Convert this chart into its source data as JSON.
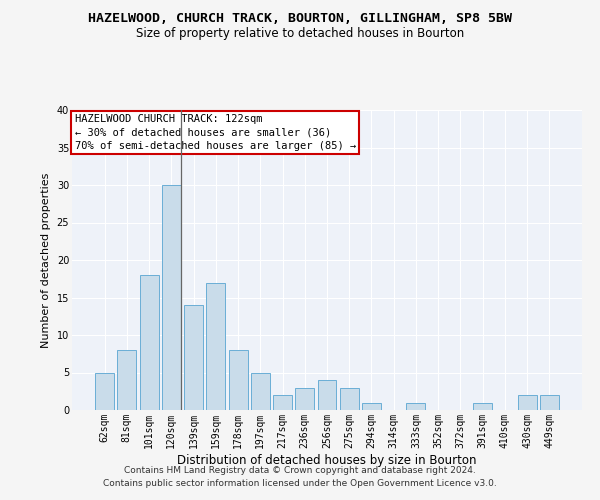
{
  "title": "HAZELWOOD, CHURCH TRACK, BOURTON, GILLINGHAM, SP8 5BW",
  "subtitle": "Size of property relative to detached houses in Bourton",
  "xlabel": "Distribution of detached houses by size in Bourton",
  "ylabel": "Number of detached properties",
  "categories": [
    "62sqm",
    "81sqm",
    "101sqm",
    "120sqm",
    "139sqm",
    "159sqm",
    "178sqm",
    "197sqm",
    "217sqm",
    "236sqm",
    "256sqm",
    "275sqm",
    "294sqm",
    "314sqm",
    "333sqm",
    "352sqm",
    "372sqm",
    "391sqm",
    "410sqm",
    "430sqm",
    "449sqm"
  ],
  "values": [
    5,
    8,
    18,
    30,
    14,
    17,
    8,
    5,
    2,
    3,
    4,
    3,
    1,
    0,
    1,
    0,
    0,
    1,
    0,
    2,
    2
  ],
  "bar_color": "#c9dcea",
  "bar_edge_color": "#6aaed6",
  "highlight_index": 3,
  "highlight_line_color": "#666666",
  "background_color": "#eef2f9",
  "grid_color": "#ffffff",
  "annotation_box_text_line1": "HAZELWOOD CHURCH TRACK: 122sqm",
  "annotation_box_text_line2": "← 30% of detached houses are smaller (36)",
  "annotation_box_text_line3": "70% of semi-detached houses are larger (85) →",
  "annotation_box_color": "#ffffff",
  "annotation_box_edge_color": "#cc0000",
  "ylim": [
    0,
    40
  ],
  "yticks": [
    0,
    5,
    10,
    15,
    20,
    25,
    30,
    35,
    40
  ],
  "footer_line1": "Contains HM Land Registry data © Crown copyright and database right 2024.",
  "footer_line2": "Contains public sector information licensed under the Open Government Licence v3.0.",
  "title_fontsize": 9.5,
  "subtitle_fontsize": 8.5,
  "xlabel_fontsize": 8.5,
  "ylabel_fontsize": 8.0,
  "tick_fontsize": 7.0,
  "annotation_fontsize": 7.5,
  "footer_fontsize": 6.5
}
